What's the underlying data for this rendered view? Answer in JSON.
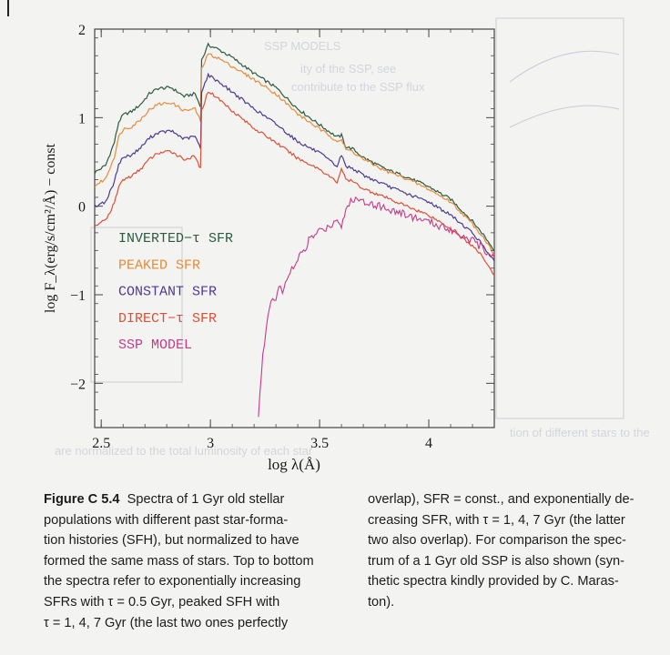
{
  "chart_data": {
    "type": "line",
    "xlabel": "log λ(Å)",
    "ylabel": "log F_λ(erg/s/cm²/Å) − const",
    "xlim": [
      2.47,
      4.3
    ],
    "ylim": [
      -2.5,
      2
    ],
    "xticks": [
      2.5,
      3,
      3.5,
      4
    ],
    "xtick_labels": [
      "2.5",
      "3",
      "3.5",
      "4"
    ],
    "yticks": [
      -2,
      -1,
      0,
      1,
      2
    ],
    "ytick_labels": [
      "−2",
      "−1",
      "0",
      "1",
      "2"
    ],
    "grid": false,
    "legend": "left-center",
    "series": [
      {
        "name": "INVERTED−τ SFR",
        "color": "#2f5a41",
        "x": [
          2.47,
          2.52,
          2.56,
          2.58,
          2.6,
          2.64,
          2.68,
          2.72,
          2.76,
          2.82,
          2.88,
          2.93,
          2.955,
          2.96,
          2.99,
          3.03,
          3.1,
          3.2,
          3.3,
          3.4,
          3.5,
          3.58,
          3.6,
          3.62,
          3.65,
          3.7,
          3.8,
          3.9,
          4.0,
          4.1,
          4.2,
          4.25,
          4.3
        ],
        "y": [
          0.38,
          0.46,
          0.72,
          0.95,
          1.03,
          1.07,
          1.15,
          1.27,
          1.33,
          1.34,
          1.24,
          1.27,
          1.12,
          1.65,
          1.82,
          1.78,
          1.68,
          1.5,
          1.34,
          1.1,
          0.92,
          0.78,
          0.8,
          0.67,
          0.65,
          0.55,
          0.42,
          0.33,
          0.22,
          0.08,
          -0.17,
          -0.32,
          -0.5
        ]
      },
      {
        "name": "PEAKED SFR",
        "color": "#e58c3c",
        "x": [
          2.47,
          2.52,
          2.56,
          2.58,
          2.6,
          2.64,
          2.68,
          2.72,
          2.76,
          2.82,
          2.88,
          2.93,
          2.955,
          2.96,
          2.99,
          3.03,
          3.1,
          3.2,
          3.3,
          3.4,
          3.5,
          3.58,
          3.6,
          3.62,
          3.65,
          3.7,
          3.8,
          3.9,
          4.0,
          4.1,
          4.2,
          4.25,
          4.3
        ],
        "y": [
          0.23,
          0.31,
          0.56,
          0.78,
          0.87,
          0.9,
          0.98,
          1.09,
          1.15,
          1.17,
          1.08,
          1.1,
          0.96,
          1.55,
          1.72,
          1.68,
          1.58,
          1.43,
          1.27,
          1.04,
          0.87,
          0.74,
          0.75,
          0.64,
          0.62,
          0.53,
          0.4,
          0.31,
          0.19,
          0.05,
          -0.2,
          -0.35,
          -0.54
        ]
      },
      {
        "name": "CONSTANT SFR",
        "color": "#4e3a8e",
        "x": [
          2.47,
          2.52,
          2.56,
          2.58,
          2.6,
          2.64,
          2.68,
          2.72,
          2.76,
          2.82,
          2.88,
          2.93,
          2.955,
          2.96,
          2.99,
          3.03,
          3.1,
          3.2,
          3.3,
          3.4,
          3.5,
          3.58,
          3.6,
          3.62,
          3.65,
          3.7,
          3.8,
          3.9,
          4.0,
          4.1,
          4.2,
          4.25,
          4.3
        ],
        "y": [
          0.0,
          0.05,
          0.27,
          0.48,
          0.55,
          0.58,
          0.66,
          0.77,
          0.83,
          0.85,
          0.76,
          0.79,
          0.65,
          1.3,
          1.48,
          1.42,
          1.29,
          1.1,
          0.93,
          0.73,
          0.6,
          0.45,
          0.58,
          0.45,
          0.43,
          0.35,
          0.24,
          0.14,
          0.05,
          -0.1,
          -0.3,
          -0.45,
          -0.62
        ]
      },
      {
        "name": "DIRECT−τ SFR",
        "color": "#dc5038",
        "x": [
          2.47,
          2.52,
          2.56,
          2.58,
          2.6,
          2.64,
          2.68,
          2.72,
          2.76,
          2.82,
          2.88,
          2.93,
          2.955,
          2.96,
          2.99,
          3.03,
          3.1,
          3.2,
          3.3,
          3.4,
          3.5,
          3.58,
          3.6,
          3.62,
          3.65,
          3.7,
          3.8,
          3.9,
          4.0,
          4.1,
          4.2,
          4.25,
          4.3
        ],
        "y": [
          -0.22,
          -0.16,
          0.03,
          0.22,
          0.3,
          0.34,
          0.42,
          0.53,
          0.6,
          0.62,
          0.53,
          0.56,
          0.42,
          1.08,
          1.3,
          1.23,
          1.08,
          0.88,
          0.72,
          0.54,
          0.42,
          0.27,
          0.43,
          0.3,
          0.28,
          0.2,
          0.1,
          0.0,
          -0.1,
          -0.25,
          -0.45,
          -0.58,
          -0.78
        ]
      },
      {
        "name": "SSP MODEL",
        "color": "#c83a88",
        "x": [
          3.22,
          3.24,
          3.27,
          3.3,
          3.32,
          3.33,
          3.35,
          3.38,
          3.42,
          3.44,
          3.45,
          3.5,
          3.55,
          3.58,
          3.6,
          3.62,
          3.65,
          3.68,
          3.72,
          3.8,
          3.9,
          4.0,
          4.1,
          4.2,
          4.25,
          4.3
        ],
        "y": [
          -2.4,
          -1.65,
          -1.15,
          -1.02,
          -0.9,
          -0.95,
          -0.8,
          -0.7,
          -0.52,
          -0.47,
          -0.38,
          -0.28,
          -0.22,
          -0.13,
          -0.22,
          -0.04,
          0.08,
          0.07,
          0.05,
          -0.02,
          -0.1,
          -0.18,
          -0.26,
          -0.39,
          -0.48,
          -0.58
        ]
      }
    ]
  },
  "caption": {
    "label": "Figure C 5.4",
    "left_lines": [
      "Spectra of 1 Gyr old stellar",
      "populations with different past star-forma-",
      "tion histories (SFH), but normalized to have",
      "formed the same mass of stars. Top to bottom",
      "the spectra refer to exponentially increasing",
      "SFRs with τ = 0.5 Gyr, peaked SFH with",
      "τ = 1, 4, 7 Gyr (the last two ones perfectly"
    ],
    "right_lines": [
      "overlap), SFR = const., and exponentially de-",
      "creasing SFR, with τ = 1, 4, 7 Gyr (the latter",
      "two also overlap). For comparison the spec-",
      "trum of a 1 Gyr old SSP is also shown (syn-",
      "thetic spectra kindly provided by C. Maras-",
      "ton)."
    ]
  }
}
